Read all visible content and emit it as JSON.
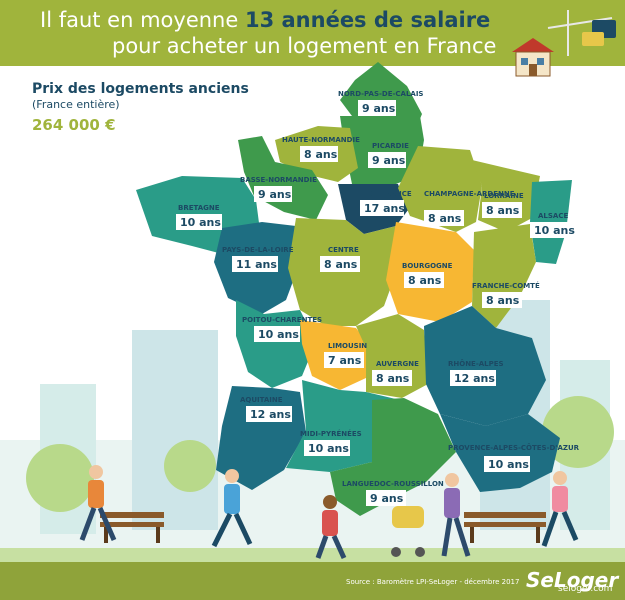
{
  "header": {
    "line1_pre": "Il faut en moyenne ",
    "line1_bold": "13 années de salaire",
    "line2": "pour acheter un logement en France"
  },
  "info": {
    "title": "Prix des logements anciens",
    "subtitle": "(France entière)",
    "price": "264 000 €"
  },
  "colors": {
    "header_green": "#a0b43c",
    "title_navy": "#1c4a64",
    "region_7_8": "#f7b733",
    "region_8": "#a0b43c",
    "region_9": "#3f9a4c",
    "region_10": "#2a9c88",
    "region_11_12": "#1e6e82",
    "region_17": "#1c4a64"
  },
  "regions": [
    {
      "name": "NORD-PAS-DE-CALAIS",
      "value": "9 ans"
    },
    {
      "name": "HAUTE-NORMANDIE",
      "value": "8 ans"
    },
    {
      "name": "PICARDIE",
      "value": "9 ans"
    },
    {
      "name": "BASSE-NORMANDIE",
      "value": "9 ans"
    },
    {
      "name": "BRETAGNE",
      "value": "10 ans"
    },
    {
      "name": "ÎLE-DE-FRANCE",
      "value": "17 ans"
    },
    {
      "name": "CHAMPAGNE-ARDENNE",
      "value": "8 ans"
    },
    {
      "name": "LORRAINE",
      "value": "8 ans"
    },
    {
      "name": "ALSACE",
      "value": "10 ans"
    },
    {
      "name": "PAYS-DE-LA-LOIRE",
      "value": "11 ans"
    },
    {
      "name": "CENTRE",
      "value": "8 ans"
    },
    {
      "name": "BOURGOGNE",
      "value": "8 ans"
    },
    {
      "name": "FRANCHE-COMTÉ",
      "value": "8 ans"
    },
    {
      "name": "POITOU-CHARENTES",
      "value": "10 ans"
    },
    {
      "name": "LIMOUSIN",
      "value": "7 ans"
    },
    {
      "name": "AUVERGNE",
      "value": "8 ans"
    },
    {
      "name": "RHÔNE-ALPES",
      "value": "12 ans"
    },
    {
      "name": "AQUITAINE",
      "value": "12 ans"
    },
    {
      "name": "MIDI-PYRÉNÉES",
      "value": "10 ans"
    },
    {
      "name": "PROVENCE-ALPES-CÔTES-D'AZUR",
      "value": "10 ans"
    },
    {
      "name": "LANGUEDOC-ROUSSILLON",
      "value": "9 ans"
    }
  ],
  "footer": {
    "source": "Source : Baromètre LPI-SeLoger - décembre 2017",
    "logo": "SeLoger",
    "watermark": "seloger.com"
  }
}
